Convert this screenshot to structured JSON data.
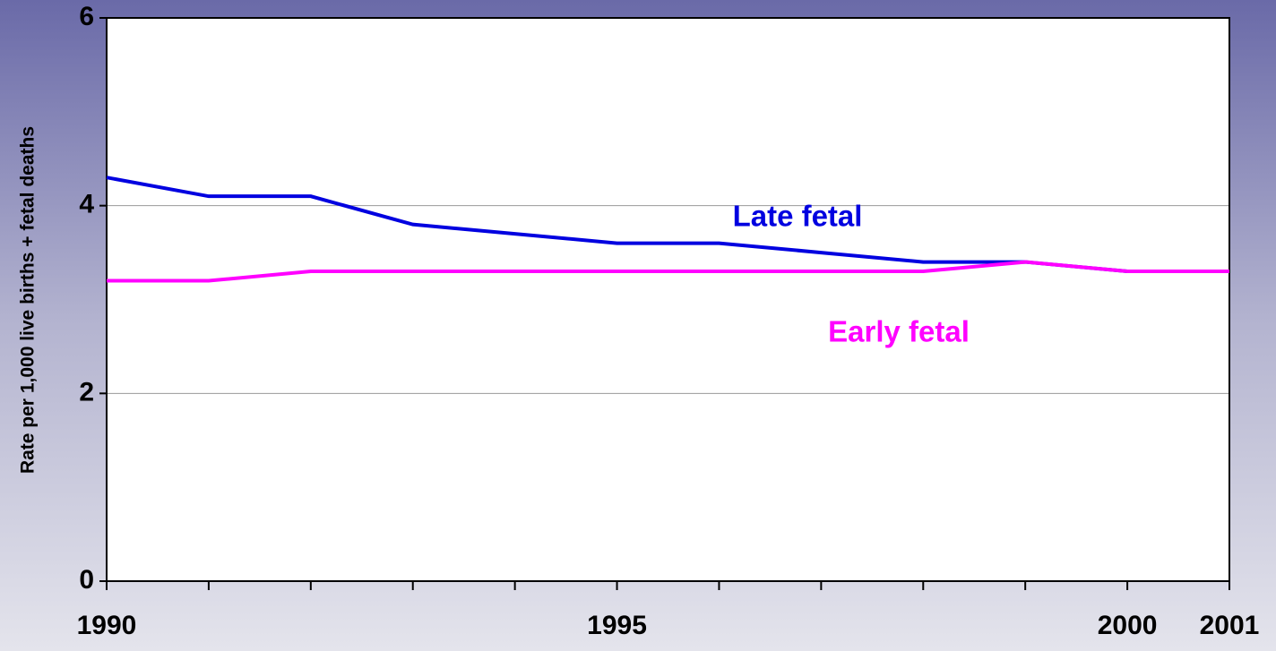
{
  "chart_data": {
    "type": "line",
    "ylabel": "Rate per 1,000 live births + fetal deaths",
    "x": [
      1990,
      1991,
      1992,
      1993,
      1994,
      1995,
      1996,
      1997,
      1998,
      1999,
      2000,
      2001
    ],
    "series": [
      {
        "name": "Late fetal",
        "color": "#0000e0",
        "values": [
          4.3,
          4.1,
          4.1,
          3.8,
          3.7,
          3.6,
          3.6,
          3.5,
          3.4,
          3.4,
          3.3,
          3.3
        ]
      },
      {
        "name": "Early fetal",
        "color": "#ff00ff",
        "values": [
          3.2,
          3.2,
          3.3,
          3.3,
          3.3,
          3.3,
          3.3,
          3.3,
          3.3,
          3.4,
          3.3,
          3.3
        ]
      }
    ],
    "xlim": [
      1990,
      2001
    ],
    "xticks": [
      1990,
      1995,
      2000,
      2001
    ],
    "ylim": [
      0,
      6
    ],
    "yticks": [
      0,
      2,
      4,
      6
    ],
    "grid": true
  }
}
